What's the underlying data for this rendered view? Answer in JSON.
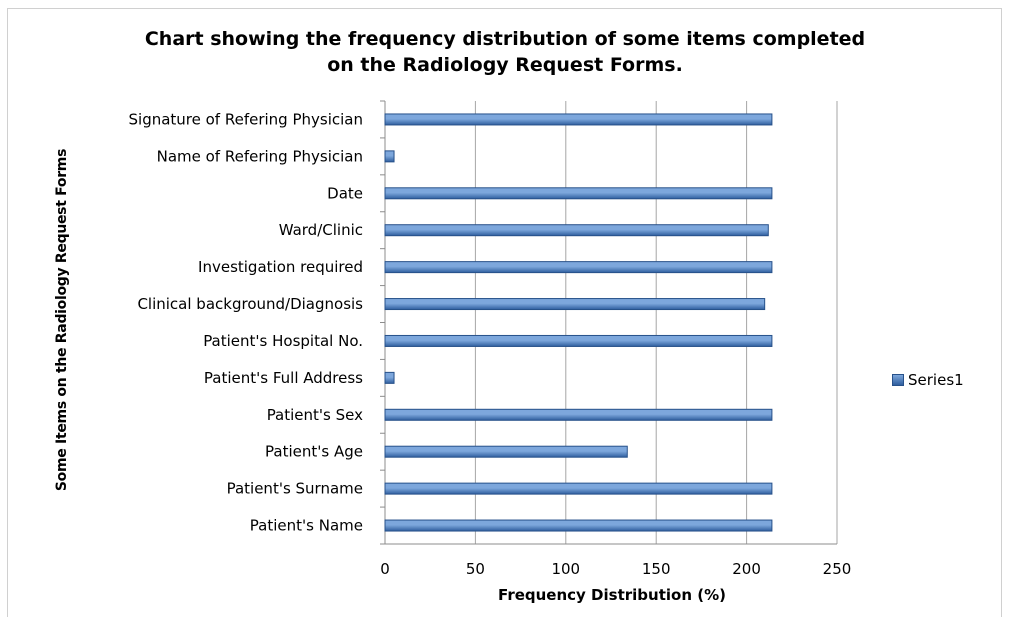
{
  "chart_data": {
    "type": "bar",
    "orientation": "horizontal",
    "title_lines": [
      "Chart showing the frequency distribution of some items completed",
      "on the Radiology Request Forms."
    ],
    "xlabel": "Frequency Distribution  (%)",
    "ylabel": "Some Items on the Radiology Request Forms",
    "xlim": [
      0,
      250
    ],
    "xticks": [
      0,
      50,
      100,
      150,
      200,
      250
    ],
    "grid": "vertical",
    "legend": "right",
    "categories": [
      "Signature of Refering Physician",
      "Name of Refering Physician",
      "Date",
      "Ward/Clinic",
      "Investigation required",
      "Clinical background/Diagnosis",
      "Patient's Hospital No.",
      "Patient's Full Address",
      "Patient's Sex",
      "Patient's Age",
      "Patient's Surname",
      "Patient's Name"
    ],
    "series": [
      {
        "name": "Series1",
        "values": [
          214,
          5,
          214,
          212,
          214,
          210,
          214,
          5,
          214,
          134,
          214,
          214
        ]
      }
    ],
    "colors": {
      "bar_light": "#7da7dc",
      "bar_dark": "#2f5e9e",
      "bar_edge": "#27518a",
      "grid": "#a6a6a6"
    }
  }
}
